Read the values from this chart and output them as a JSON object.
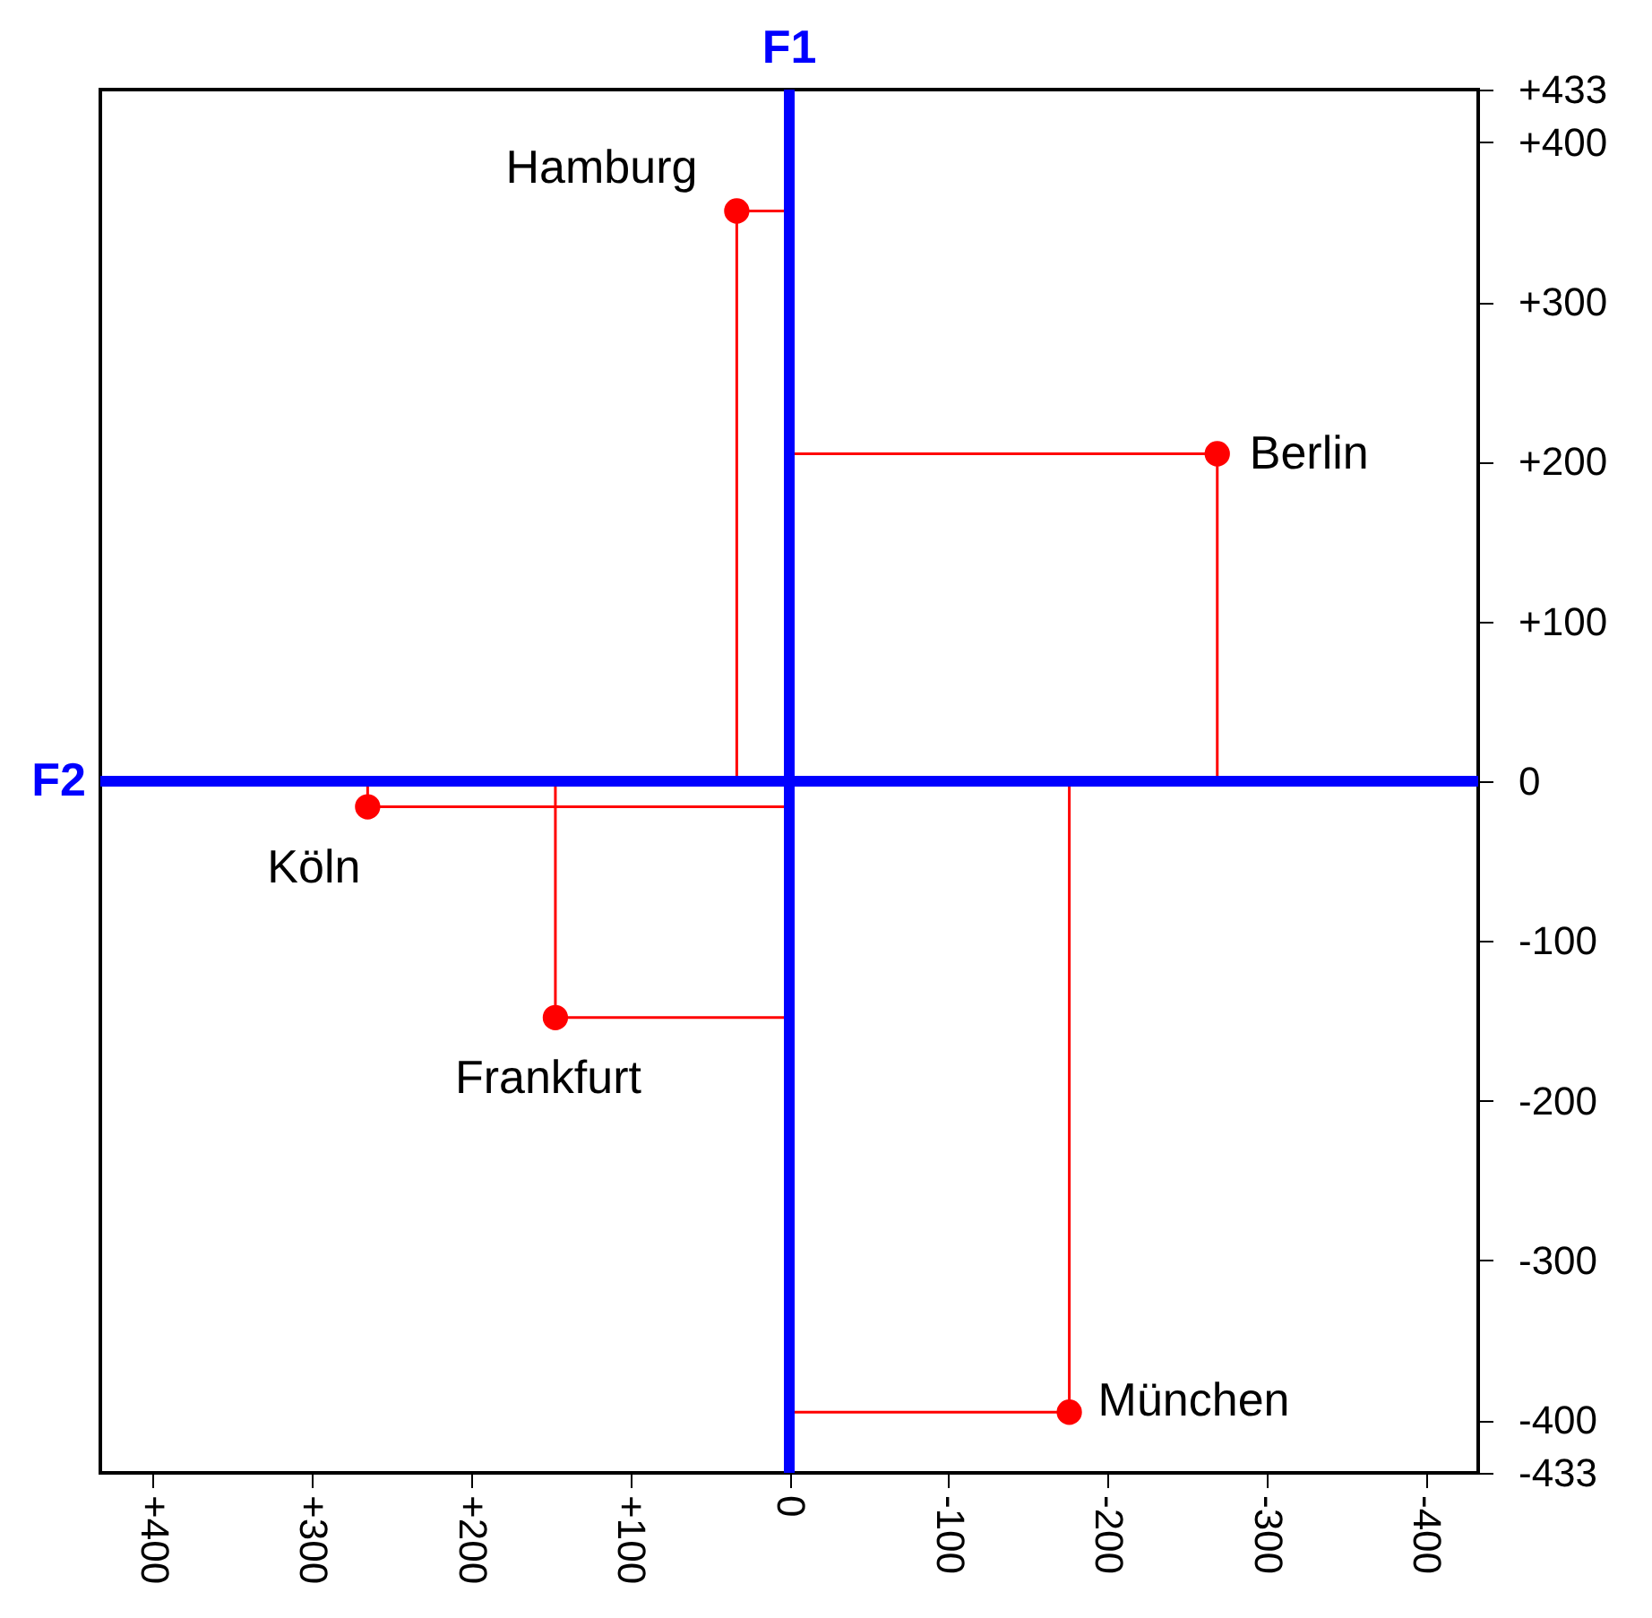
{
  "chart_data": {
    "type": "scatter",
    "marker": "circle",
    "xlim": [
      433,
      -433
    ],
    "ylim": [
      -433,
      433
    ],
    "xticks": [
      {
        "value": 400,
        "label": "+400"
      },
      {
        "value": 300,
        "label": "+300"
      },
      {
        "value": 200,
        "label": "+200"
      },
      {
        "value": 100,
        "label": "+100"
      },
      0,
      -100,
      -200,
      -300,
      -400
    ],
    "yticks": [
      {
        "value": 433,
        "label": "+433"
      },
      {
        "value": 400,
        "label": "+400"
      },
      {
        "value": 300,
        "label": "+300"
      },
      {
        "value": 200,
        "label": "+200"
      },
      {
        "value": 100,
        "label": "+100"
      },
      0,
      -100,
      -200,
      -300,
      -400,
      -433
    ],
    "series": [
      {
        "color": "#ff0000",
        "x": [
          33,
          -269,
          265,
          147,
          -176
        ],
        "values": [
          357,
          205,
          -16,
          -148,
          -395
        ]
      }
    ],
    "ref_lines": [
      {
        "axis": "x",
        "value": 0,
        "label": "F1",
        "color": "#0000ff"
      },
      {
        "axis": "y",
        "value": 0,
        "label": "F2",
        "color": "#0000ff"
      }
    ],
    "annotations": [
      {
        "text": "Hamburg",
        "x": 33,
        "y": 357
      },
      {
        "text": "Berlin",
        "x": -269,
        "y": 205
      },
      {
        "text": "Köln",
        "x": 265,
        "y": -16
      },
      {
        "text": "Frankfurt",
        "x": 147,
        "y": -148
      },
      {
        "text": "München",
        "x": -176,
        "y": -395
      }
    ]
  }
}
